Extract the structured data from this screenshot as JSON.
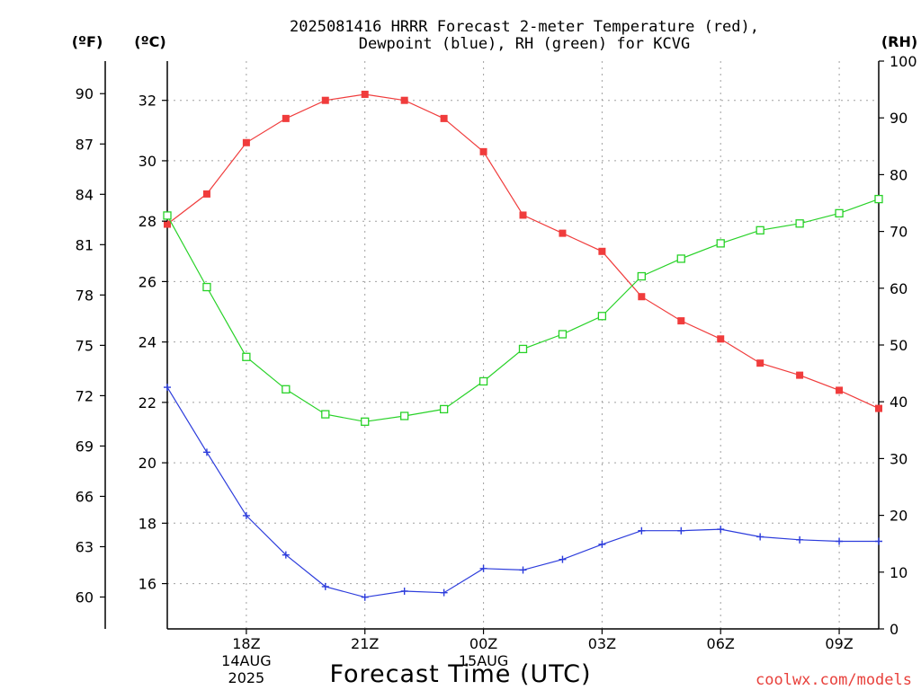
{
  "chart_data": {
    "type": "line",
    "title": "2025081416 HRRR Forecast 2-meter Temperature (red),",
    "subtitle": "Dewpoint (blue), RH (green) for KCVG",
    "xlabel": "Forecast Time (UTC)",
    "credit": "coolwx.com/models",
    "units": {
      "fahrenheit": "(ºF)",
      "celsius": "(ºC)",
      "rh": "(RH)"
    },
    "x_hours": [
      16,
      17,
      18,
      19,
      20,
      21,
      22,
      23,
      24,
      25,
      26,
      27,
      28,
      29,
      30,
      31,
      32,
      33,
      34
    ],
    "xlim": [
      16,
      34
    ],
    "x_ticks": [
      {
        "hour": 18,
        "label": "18Z",
        "label2": "14AUG",
        "label3": "2025"
      },
      {
        "hour": 21,
        "label": "21Z"
      },
      {
        "hour": 24,
        "label": "00Z",
        "label2": "15AUG"
      },
      {
        "hour": 27,
        "label": "03Z"
      },
      {
        "hour": 30,
        "label": "06Z"
      },
      {
        "hour": 33,
        "label": "09Z"
      }
    ],
    "celsius_axis": {
      "min": 14.5,
      "max": 33.3,
      "ticks": [
        16,
        18,
        20,
        22,
        24,
        26,
        28,
        30,
        32
      ]
    },
    "fahrenheit_ticks": [
      60,
      63,
      66,
      69,
      72,
      75,
      78,
      81,
      84,
      87,
      90
    ],
    "rh_axis": {
      "min": 0,
      "max": 100,
      "ticks": [
        0,
        10,
        20,
        30,
        40,
        50,
        60,
        70,
        80,
        90,
        100
      ]
    },
    "grid": true,
    "series": [
      {
        "name": "Temperature",
        "axis": "celsius",
        "color": "#f03c3c",
        "marker": "filled-square",
        "values": [
          27.9,
          28.9,
          30.6,
          31.4,
          32.0,
          32.2,
          32.0,
          31.4,
          30.3,
          28.2,
          27.6,
          27.0,
          25.5,
          24.7,
          24.1,
          23.3,
          22.9,
          22.4,
          21.8
        ]
      },
      {
        "name": "Dewpoint",
        "axis": "celsius",
        "color": "#2c3cdc",
        "marker": "plus",
        "values": [
          22.5,
          20.35,
          18.25,
          16.95,
          15.9,
          15.55,
          15.75,
          15.7,
          16.5,
          16.45,
          16.8,
          17.3,
          17.75,
          17.75,
          17.8,
          17.55,
          17.45,
          17.4,
          17.4
        ]
      },
      {
        "name": "RH",
        "axis": "rh",
        "color": "#28d228",
        "marker": "open-square",
        "values": [
          72.8,
          60.2,
          47.9,
          42.2,
          37.8,
          36.5,
          37.5,
          38.7,
          43.6,
          49.3,
          51.9,
          55.1,
          62.1,
          65.2,
          67.9,
          70.2,
          71.4,
          73.2,
          75.7
        ]
      }
    ]
  }
}
